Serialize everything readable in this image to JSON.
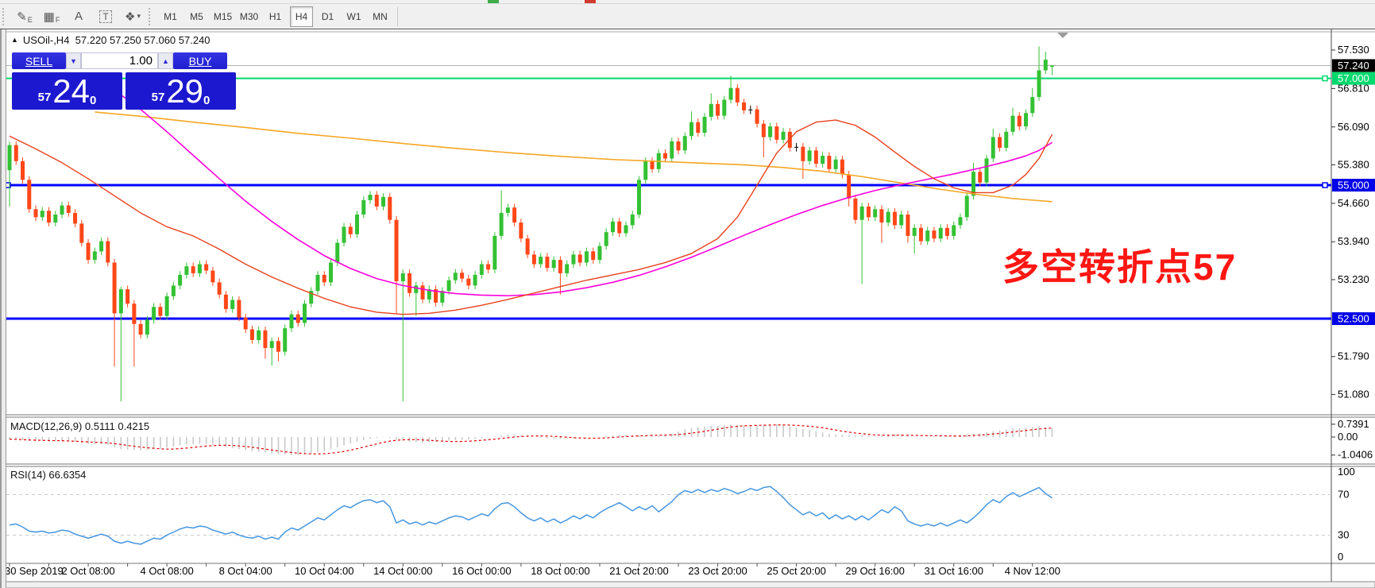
{
  "toolbar": {
    "tools": [
      {
        "name": "crosshair-draw-icon",
        "glyph": "✎",
        "sub": "E"
      },
      {
        "name": "grid-icon",
        "glyph": "▦",
        "sub": "F"
      },
      {
        "name": "text-label-icon",
        "glyph": "A",
        "sub": ""
      },
      {
        "name": "text-box-icon",
        "glyph": "T",
        "sub": ""
      },
      {
        "name": "arrows-icon",
        "glyph": "❖",
        "sub": "▾"
      }
    ],
    "timeframes": [
      "M1",
      "M5",
      "M15",
      "M30",
      "H1",
      "H4",
      "D1",
      "W1",
      "MN"
    ],
    "active_timeframe": "H4"
  },
  "chart_header": {
    "marker": "▲",
    "title": "USOil-,H4  57.220 57.250 57.060 57.240"
  },
  "trade_panel": {
    "sell_label": "SELL",
    "buy_label": "BUY",
    "volume": "1.00",
    "spin_down": "▼",
    "spin_up": "▲",
    "sell_small": "57",
    "sell_big": "24",
    "sell_sup": "0",
    "buy_small": "57",
    "buy_big": "29",
    "buy_sup": "0"
  },
  "annotation": {
    "text": "多空转折点57",
    "color": "#ff1612"
  },
  "indicators": {
    "macd_label": "MACD(12,26,9) 0.5111 0.4215",
    "rsi_label": "RSI(14) 66.6354"
  },
  "chart_data": {
    "type": "candlestick",
    "symbol": "USOil-",
    "timeframe": "H4",
    "last_ohlc": {
      "open": 57.22,
      "high": 57.25,
      "low": 57.06,
      "close": 57.24
    },
    "colors": {
      "bull": "#33c133",
      "bear": "#ff4718",
      "doji": "#000000",
      "ma_fast": "#e8401c",
      "ma_mid": "#ff00dc",
      "ma_slow": "#f5a623",
      "hline_green": "#00d96e",
      "hline_blue": "#0000ff",
      "price_line": "#b4b4b4",
      "macd_hist": "#c9c9c9",
      "macd_signal": "#e00000",
      "rsi_line": "#4696e0"
    },
    "y_axis_ticks": [
      57.53,
      56.81,
      56.09,
      55.38,
      54.66,
      53.94,
      53.23,
      51.79,
      51.08
    ],
    "price_badges": [
      {
        "value": "57.240",
        "price": 57.24,
        "bg": "#000000",
        "fg": "#ffffff"
      },
      {
        "value": "57.000",
        "price": 57.0,
        "bg": "#00d96e",
        "fg": "#ffffff"
      },
      {
        "value": "55.000",
        "price": 55.0,
        "bg": "#0000e8",
        "fg": "#ffffff"
      },
      {
        "value": "52.500",
        "price": 52.5,
        "bg": "#0000e8",
        "fg": "#ffffff"
      }
    ],
    "hlines": [
      {
        "price": 57.24,
        "color": "#b4b4b4",
        "width": 1,
        "handles": []
      },
      {
        "price": 57.0,
        "color": "#00d96e",
        "width": 2,
        "handles": [
          "right"
        ]
      },
      {
        "price": 55.0,
        "color": "#0000ff",
        "width": 3,
        "handles": [
          "left",
          "right"
        ]
      },
      {
        "price": 52.5,
        "color": "#0000ff",
        "width": 3,
        "handles": []
      }
    ],
    "x_labels": [
      "30 Sep 2019",
      "2 Oct 08:00",
      "4 Oct 08:00",
      "8 Oct 04:00",
      "10 Oct 04:00",
      "14 Oct 00:00",
      "16 Oct 00:00",
      "18 Oct 00:00",
      "21 Oct 20:00",
      "23 Oct 20:00",
      "25 Oct 20:00",
      "29 Oct 16:00",
      "31 Oct 16:00",
      "4 Nov 12:00"
    ],
    "open_first": 55.28,
    "closes": [
      55.75,
      55.45,
      55.1,
      54.55,
      54.4,
      54.52,
      54.3,
      54.45,
      54.62,
      54.48,
      54.28,
      53.92,
      53.6,
      53.76,
      53.95,
      53.55,
      52.6,
      53.05,
      52.78,
      52.4,
      52.2,
      52.48,
      52.72,
      52.55,
      52.92,
      53.12,
      53.32,
      53.48,
      53.35,
      53.52,
      53.4,
      53.18,
      52.95,
      52.68,
      52.85,
      52.52,
      52.3,
      52.1,
      52.28,
      51.95,
      52.08,
      51.88,
      52.32,
      52.58,
      52.42,
      52.78,
      53.02,
      53.32,
      53.18,
      53.55,
      53.92,
      54.22,
      54.08,
      54.45,
      54.72,
      54.82,
      54.6,
      54.78,
      54.35,
      53.2,
      53.35,
      52.98,
      53.12,
      52.86,
      53.05,
      52.8,
      53.02,
      53.22,
      53.36,
      53.25,
      53.12,
      53.32,
      53.52,
      53.42,
      54.05,
      54.48,
      54.58,
      54.3,
      54.0,
      53.7,
      53.52,
      53.66,
      53.45,
      53.6,
      53.35,
      53.52,
      53.7,
      53.55,
      53.76,
      53.6,
      53.86,
      54.12,
      54.32,
      54.1,
      54.25,
      54.45,
      55.1,
      55.45,
      55.3,
      55.6,
      55.5,
      55.82,
      55.65,
      55.92,
      56.18,
      55.98,
      56.28,
      56.52,
      56.3,
      56.6,
      56.82,
      56.55,
      56.4,
      56.42,
      56.15,
      55.9,
      56.1,
      55.85,
      56.0,
      55.7,
      55.72,
      55.45,
      55.65,
      55.4,
      55.55,
      55.3,
      55.48,
      55.2,
      54.75,
      54.35,
      54.6,
      54.4,
      54.55,
      54.3,
      54.5,
      54.25,
      54.45,
      54.05,
      54.2,
      53.95,
      54.15,
      54.0,
      54.2,
      54.05,
      54.25,
      54.4,
      54.8,
      55.25,
      55.05,
      55.5,
      55.9,
      55.7,
      56.0,
      56.3,
      56.1,
      56.35,
      56.65,
      57.15,
      57.35,
      57.24
    ],
    "overrides": {
      "0": {
        "h": 55.82,
        "l": 54.6
      },
      "16": {
        "l": 51.6
      },
      "17": {
        "l": 50.95,
        "h": 53.1
      },
      "19": {
        "l": 51.6
      },
      "39": {
        "l": 51.75
      },
      "40": {
        "l": 51.62
      },
      "41": {
        "l": 51.7
      },
      "59": {
        "l": 52.6
      },
      "60": {
        "l": 50.95
      },
      "62": {
        "l": 52.55
      },
      "75": {
        "h": 54.9
      },
      "84": {
        "l": 52.95
      },
      "104": {
        "h": 56.38
      },
      "107": {
        "h": 56.72
      },
      "110": {
        "h": 57.05
      },
      "115": {
        "l": 55.52
      },
      "121": {
        "l": 55.12
      },
      "128": {
        "l": 54.6
      },
      "130": {
        "l": 53.15
      },
      "133": {
        "l": 53.92
      },
      "137": {
        "l": 53.92,
        "h": 54.52
      },
      "138": {
        "l": 53.72
      },
      "147": {
        "h": 55.42
      },
      "150": {
        "h": 56.06
      },
      "153": {
        "h": 56.45
      },
      "156": {
        "h": 56.82
      },
      "157": {
        "h": 57.6
      },
      "158": {
        "h": 57.5
      },
      "159": {
        "o": 57.22,
        "h": 57.25,
        "l": 57.06,
        "c": 57.24
      }
    },
    "doji_indices": [
      113,
      120
    ],
    "ma_slow": [
      [
        13,
        56.37
      ],
      [
        20,
        56.29
      ],
      [
        28,
        56.18
      ],
      [
        36,
        56.08
      ],
      [
        44,
        55.97
      ],
      [
        52,
        55.88
      ],
      [
        60,
        55.78
      ],
      [
        68,
        55.69
      ],
      [
        76,
        55.61
      ],
      [
        84,
        55.54
      ],
      [
        92,
        55.48
      ],
      [
        100,
        55.44
      ],
      [
        106,
        55.41
      ],
      [
        112,
        55.38
      ],
      [
        118,
        55.33
      ],
      [
        124,
        55.26
      ],
      [
        130,
        55.16
      ],
      [
        136,
        55.04
      ],
      [
        142,
        54.92
      ],
      [
        148,
        54.82
      ],
      [
        153,
        54.75
      ],
      [
        157,
        54.71
      ],
      [
        159,
        54.69
      ]
    ],
    "ma_mid": [
      [
        13,
        57.02
      ],
      [
        16,
        56.78
      ],
      [
        20,
        56.42
      ],
      [
        24,
        56.0
      ],
      [
        28,
        55.56
      ],
      [
        32,
        55.12
      ],
      [
        36,
        54.7
      ],
      [
        40,
        54.32
      ],
      [
        44,
        53.98
      ],
      [
        48,
        53.68
      ],
      [
        52,
        53.44
      ],
      [
        56,
        53.25
      ],
      [
        60,
        53.12
      ],
      [
        64,
        53.03
      ],
      [
        68,
        52.97
      ],
      [
        72,
        52.94
      ],
      [
        76,
        52.93
      ],
      [
        80,
        52.95
      ],
      [
        84,
        53.0
      ],
      [
        88,
        53.08
      ],
      [
        92,
        53.18
      ],
      [
        96,
        53.31
      ],
      [
        100,
        53.47
      ],
      [
        104,
        53.65
      ],
      [
        108,
        53.85
      ],
      [
        112,
        54.06
      ],
      [
        116,
        54.26
      ],
      [
        120,
        54.45
      ],
      [
        124,
        54.62
      ],
      [
        128,
        54.77
      ],
      [
        132,
        54.9
      ],
      [
        136,
        55.01
      ],
      [
        140,
        55.11
      ],
      [
        144,
        55.21
      ],
      [
        148,
        55.32
      ],
      [
        152,
        55.44
      ],
      [
        155,
        55.55
      ],
      [
        157,
        55.65
      ],
      [
        159,
        55.8
      ]
    ],
    "ma_fast": [
      [
        0,
        55.92
      ],
      [
        4,
        55.68
      ],
      [
        8,
        55.42
      ],
      [
        12,
        55.12
      ],
      [
        16,
        54.8
      ],
      [
        20,
        54.48
      ],
      [
        24,
        54.22
      ],
      [
        28,
        54.05
      ],
      [
        32,
        53.8
      ],
      [
        36,
        53.52
      ],
      [
        40,
        53.28
      ],
      [
        44,
        53.07
      ],
      [
        48,
        52.88
      ],
      [
        52,
        52.72
      ],
      [
        56,
        52.62
      ],
      [
        60,
        52.58
      ],
      [
        64,
        52.6
      ],
      [
        68,
        52.66
      ],
      [
        72,
        52.75
      ],
      [
        76,
        52.86
      ],
      [
        80,
        52.98
      ],
      [
        84,
        53.1
      ],
      [
        88,
        53.22
      ],
      [
        92,
        53.32
      ],
      [
        96,
        53.42
      ],
      [
        100,
        53.55
      ],
      [
        104,
        53.72
      ],
      [
        108,
        54.0
      ],
      [
        111,
        54.4
      ],
      [
        114,
        55.0
      ],
      [
        117,
        55.6
      ],
      [
        120,
        56.0
      ],
      [
        123,
        56.18
      ],
      [
        126,
        56.22
      ],
      [
        129,
        56.12
      ],
      [
        132,
        55.9
      ],
      [
        135,
        55.62
      ],
      [
        138,
        55.35
      ],
      [
        141,
        55.12
      ],
      [
        144,
        54.95
      ],
      [
        147,
        54.86
      ],
      [
        150,
        54.86
      ],
      [
        153,
        55.0
      ],
      [
        155,
        55.2
      ],
      [
        157,
        55.5
      ],
      [
        159,
        55.95
      ]
    ],
    "macd": {
      "label": "MACD(12,26,9) 0.5111 0.4215",
      "axis_labels": [
        "0.7391",
        "0.00",
        "-1.0406"
      ],
      "max": 0.7391,
      "min": -1.0406,
      "values": [
        -0.12,
        -0.15,
        -0.18,
        -0.22,
        -0.25,
        -0.24,
        -0.26,
        -0.25,
        -0.23,
        -0.26,
        -0.3,
        -0.35,
        -0.4,
        -0.42,
        -0.4,
        -0.45,
        -0.6,
        -0.7,
        -0.72,
        -0.75,
        -0.78,
        -0.74,
        -0.7,
        -0.68,
        -0.62,
        -0.55,
        -0.48,
        -0.44,
        -0.42,
        -0.4,
        -0.42,
        -0.46,
        -0.52,
        -0.6,
        -0.65,
        -0.7,
        -0.76,
        -0.82,
        -0.85,
        -0.9,
        -0.95,
        -1.0,
        -1.02,
        -1.04,
        -1.03,
        -1.0,
        -0.95,
        -0.88,
        -0.8,
        -0.7,
        -0.6,
        -0.48,
        -0.38,
        -0.28,
        -0.18,
        -0.1,
        -0.05,
        -0.02,
        -0.05,
        -0.15,
        -0.22,
        -0.28,
        -0.3,
        -0.32,
        -0.3,
        -0.28,
        -0.25,
        -0.22,
        -0.18,
        -0.16,
        -0.14,
        -0.1,
        -0.06,
        -0.02,
        0.04,
        0.1,
        0.15,
        0.16,
        0.12,
        0.06,
        0.0,
        -0.04,
        -0.08,
        -0.1,
        -0.12,
        -0.1,
        -0.08,
        -0.06,
        -0.04,
        -0.02,
        0.02,
        0.06,
        0.1,
        0.14,
        0.12,
        0.1,
        0.12,
        0.1,
        0.12,
        0.08,
        0.12,
        0.2,
        0.32,
        0.45,
        0.52,
        0.58,
        0.6,
        0.64,
        0.66,
        0.7,
        0.72,
        0.7,
        0.68,
        0.66,
        0.68,
        0.7,
        0.73,
        0.74,
        0.7,
        0.62,
        0.54,
        0.46,
        0.4,
        0.34,
        0.26,
        0.18,
        0.14,
        0.12,
        0.1,
        0.08,
        0.1,
        0.08,
        0.06,
        0.1,
        0.14,
        0.18,
        0.14,
        0.06,
        0.02,
        0.0,
        0.02,
        0.04,
        0.06,
        0.08,
        0.1,
        0.14,
        0.16,
        0.18,
        0.22,
        0.28,
        0.34,
        0.38,
        0.44,
        0.5,
        0.52,
        0.54,
        0.58,
        0.62,
        0.56,
        0.51
      ]
    },
    "rsi": {
      "label": "RSI(14) 66.6354",
      "axis_labels": [
        "100",
        "70",
        "30",
        "0"
      ],
      "levels": [
        70,
        30
      ],
      "values": [
        40,
        41,
        38,
        34,
        33,
        34,
        32,
        33,
        35,
        34,
        31,
        29,
        27,
        29,
        31,
        29,
        24,
        22,
        24,
        22,
        21,
        24,
        27,
        26,
        30,
        33,
        36,
        38,
        37,
        39,
        38,
        35,
        33,
        31,
        33,
        30,
        28,
        27,
        29,
        26,
        28,
        26,
        33,
        37,
        35,
        39,
        43,
        47,
        45,
        50,
        55,
        59,
        57,
        61,
        64,
        65,
        62,
        64,
        58,
        42,
        45,
        41,
        43,
        40,
        43,
        41,
        44,
        47,
        49,
        48,
        45,
        48,
        51,
        49,
        56,
        61,
        62,
        58,
        52,
        47,
        44,
        47,
        43,
        46,
        42,
        45,
        49,
        46,
        50,
        47,
        52,
        56,
        59,
        62,
        58,
        54,
        58,
        55,
        59,
        53,
        58,
        63,
        70,
        74,
        72,
        75,
        72,
        75,
        73,
        76,
        74,
        71,
        73,
        76,
        74,
        77,
        78,
        73,
        67,
        60,
        55,
        50,
        53,
        49,
        52,
        46,
        50,
        46,
        49,
        45,
        49,
        45,
        50,
        55,
        52,
        58,
        54,
        44,
        41,
        39,
        41,
        39,
        42,
        39,
        42,
        45,
        42,
        47,
        53,
        60,
        65,
        62,
        68,
        72,
        68,
        71,
        74,
        77,
        71,
        66.6
      ]
    }
  }
}
